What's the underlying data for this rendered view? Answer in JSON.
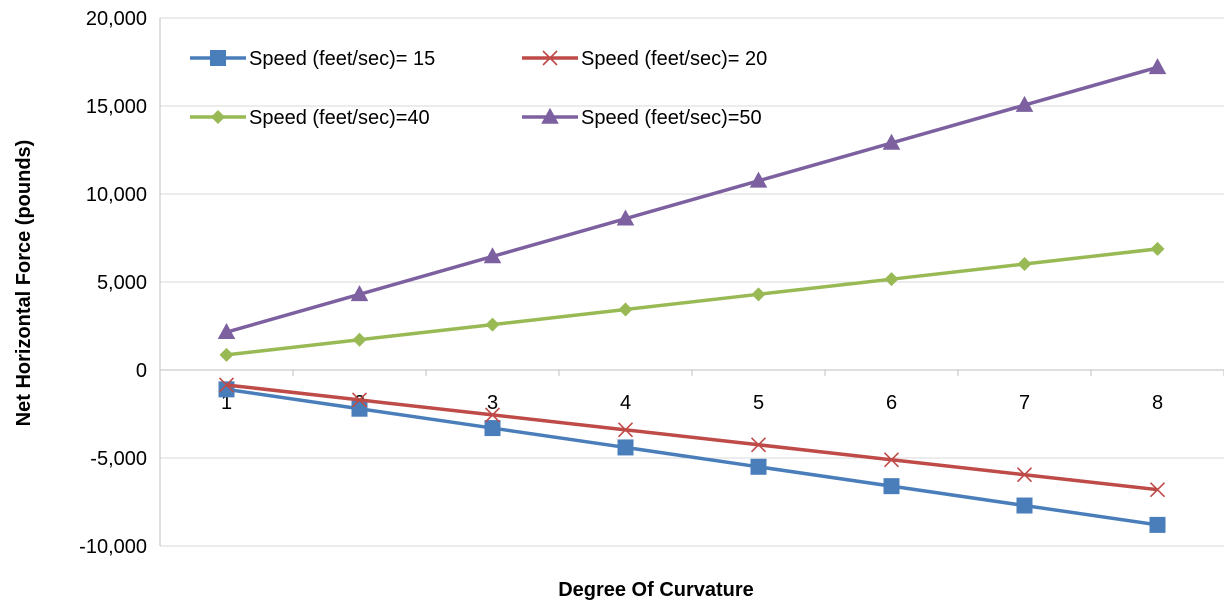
{
  "chart_data": {
    "type": "line",
    "xlabel": "Degree Of Curvature",
    "ylabel": "Net Horizontal Force (pounds)",
    "categories": [
      "1",
      "2",
      "3",
      "4",
      "5",
      "6",
      "7",
      "8"
    ],
    "ylim": [
      -10000,
      20000
    ],
    "yticks": [
      -10000,
      -5000,
      0,
      5000,
      10000,
      15000,
      20000
    ],
    "ytick_labels": [
      "-10,000",
      "-5,000",
      "0",
      "5,000",
      "10,000",
      "15,000",
      "20,000"
    ],
    "grid": true,
    "legend_position": "top-left",
    "series": [
      {
        "name": "Speed (feet/sec)= 15",
        "color": "#4a7ebb",
        "marker": "square",
        "values": [
          -1100,
          -2200,
          -3300,
          -4400,
          -5500,
          -6600,
          -7700,
          -8800
        ]
      },
      {
        "name": "Speed (feet/sec)= 20",
        "color": "#be4b48",
        "marker": "x",
        "values": [
          -850,
          -1700,
          -2550,
          -3400,
          -4250,
          -5100,
          -5950,
          -6800
        ]
      },
      {
        "name": "Speed (feet/sec)=40",
        "color": "#98b954",
        "marker": "diamond",
        "values": [
          860,
          1720,
          2580,
          3440,
          4300,
          5160,
          6020,
          6880
        ]
      },
      {
        "name": "Speed (feet/sec)=50",
        "color": "#7d60a0",
        "marker": "triangle",
        "values": [
          2150,
          4300,
          6450,
          8600,
          10750,
          12900,
          15050,
          17200
        ]
      }
    ]
  }
}
